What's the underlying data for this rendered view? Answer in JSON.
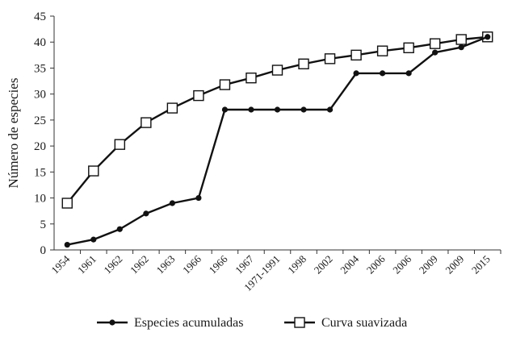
{
  "chart_data": {
    "type": "line",
    "categories": [
      "1954",
      "1961",
      "1962",
      "1962",
      "1963",
      "1966",
      "1966",
      "1967",
      "1971-1991",
      "1998",
      "2002",
      "2004",
      "2006",
      "2006",
      "2009",
      "2009",
      "2015"
    ],
    "series": [
      {
        "name": "Especies acumuladas",
        "marker": "filled-circle",
        "color": "#111111",
        "values": [
          1,
          2,
          4,
          7,
          9,
          10,
          27,
          27,
          27,
          27,
          27,
          34,
          34,
          34,
          38,
          39,
          41
        ]
      },
      {
        "name": "Curva suavizada",
        "marker": "open-square",
        "color": "#111111",
        "values": [
          9,
          15.2,
          20.3,
          24.5,
          27.3,
          29.7,
          31.8,
          33.1,
          34.6,
          35.8,
          36.8,
          37.5,
          38.3,
          38.9,
          39.7,
          40.5,
          41
        ]
      }
    ],
    "ylabel": "Número de especies",
    "xlabel": "",
    "ylim": [
      0,
      45
    ],
    "yticks": [
      "0",
      "5",
      "10",
      "15",
      "20",
      "25",
      "30",
      "35",
      "40",
      "45"
    ],
    "grid": false,
    "legend_position": "bottom"
  }
}
